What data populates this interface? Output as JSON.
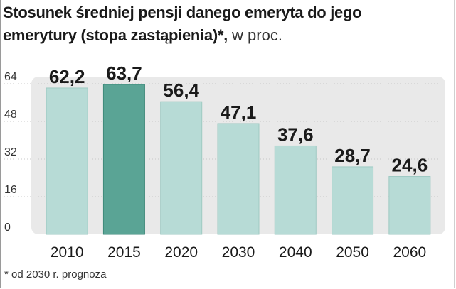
{
  "title": {
    "line1": "Stosunek średniej pensji danego emeryta do jego",
    "line2_bold": "emerytury (stopa zastąpienia)*,",
    "line2_light": " w proc."
  },
  "footnote": "* od 2030 r. prognoza",
  "colors": {
    "bar": "#b7dbd6",
    "highlight": "#5aa495",
    "plot_bg": "#e9e9e9",
    "grid": "#c8c8c8",
    "text": "#1a1a1a"
  },
  "chart_data": {
    "type": "bar",
    "title": "Stosunek średniej pensji danego emeryta do jego emerytury (stopa zastąpienia)*, w proc.",
    "categories": [
      "2010",
      "2015",
      "2020",
      "2030",
      "2040",
      "2050",
      "2060"
    ],
    "values": [
      62.2,
      63.7,
      56.4,
      47.1,
      37.6,
      28.7,
      24.6
    ],
    "value_labels": [
      "62,2",
      "63,7",
      "56,4",
      "47,1",
      "37,6",
      "28,7",
      "24,6"
    ],
    "highlight_category": "2015",
    "yticks": [
      0,
      16,
      32,
      48,
      64
    ],
    "ylim": [
      0,
      64
    ],
    "grid": true,
    "xlabel": "",
    "ylabel": ""
  }
}
